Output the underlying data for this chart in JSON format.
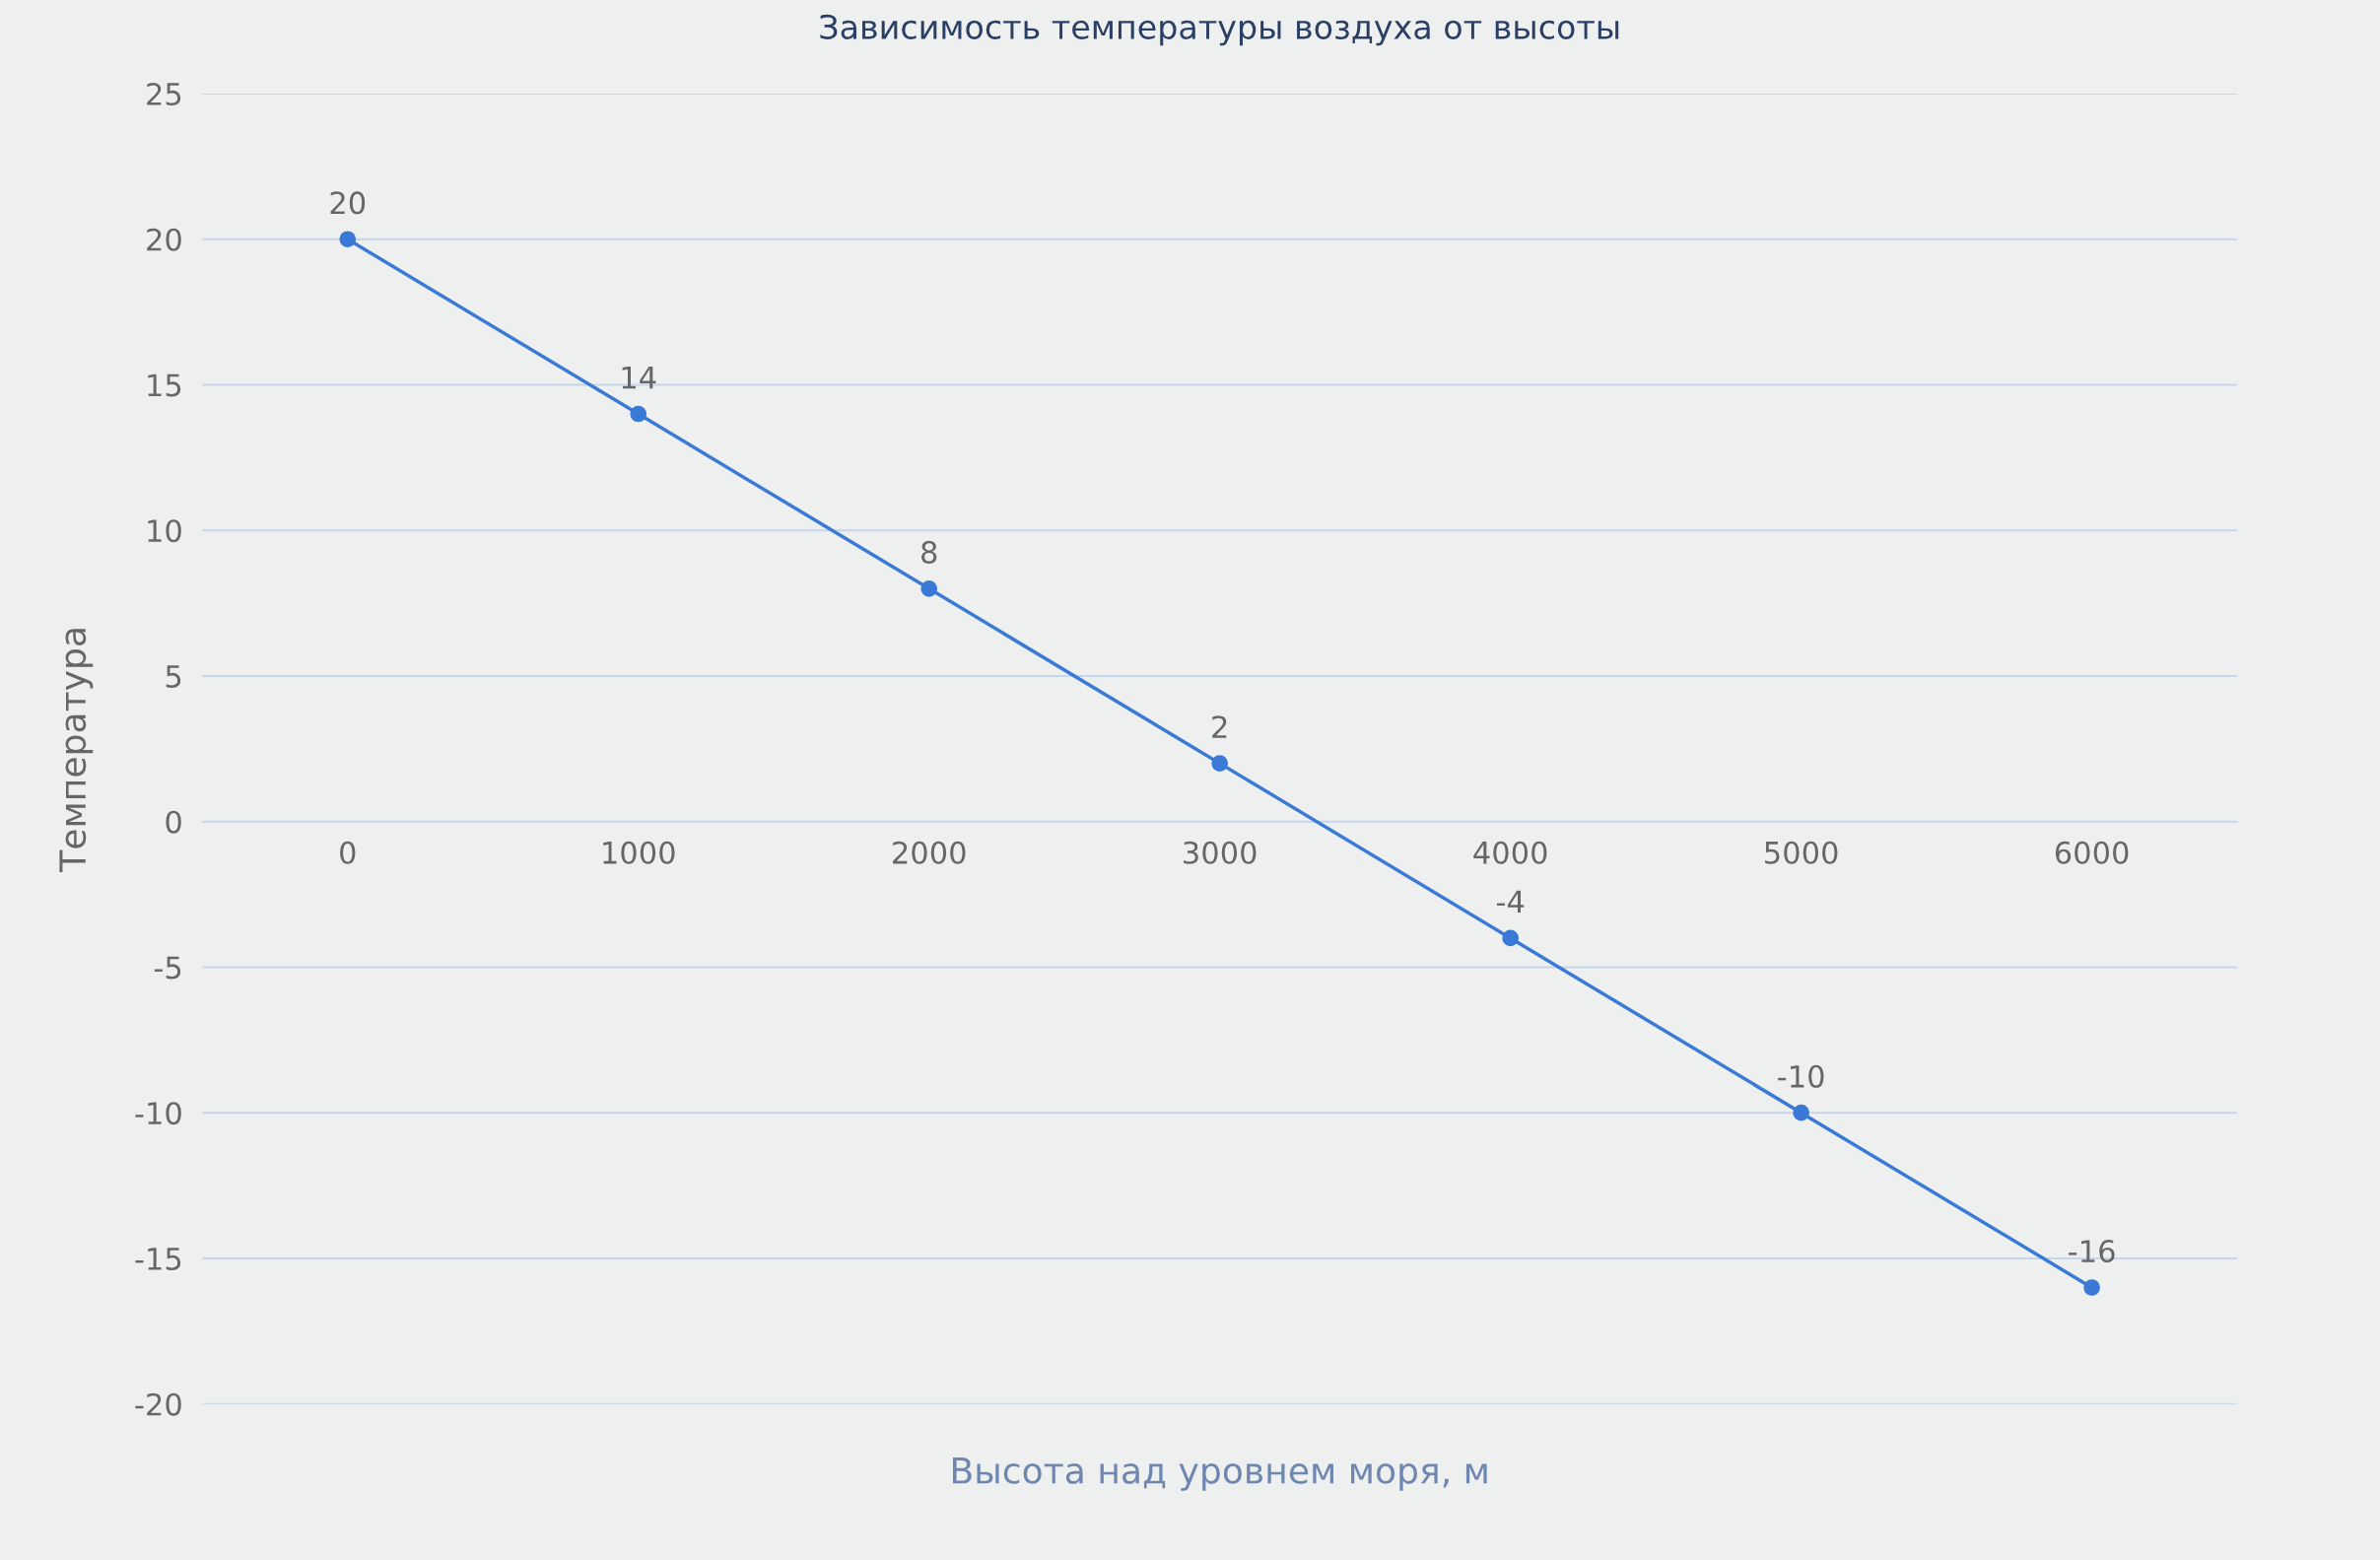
{
  "chart_data": {
    "type": "line",
    "title": "Зависимость температуры воздуха от высоты",
    "xlabel": "Высота над уровнем моря, м",
    "ylabel": "Температура",
    "categories": [
      "0",
      "1000",
      "2000",
      "3000",
      "4000",
      "5000",
      "6000"
    ],
    "series": [
      {
        "color": "#3a7ad6",
        "values": [
          20,
          14,
          8,
          2,
          -4,
          -10,
          -16
        ]
      }
    ],
    "ylim": [
      -20,
      25
    ],
    "yticks": [
      -20,
      -15,
      -10,
      -5,
      0,
      5,
      10,
      15,
      20,
      25
    ],
    "grid": "y",
    "marker": "circle",
    "line_style": "solid",
    "data_labels": true
  }
}
